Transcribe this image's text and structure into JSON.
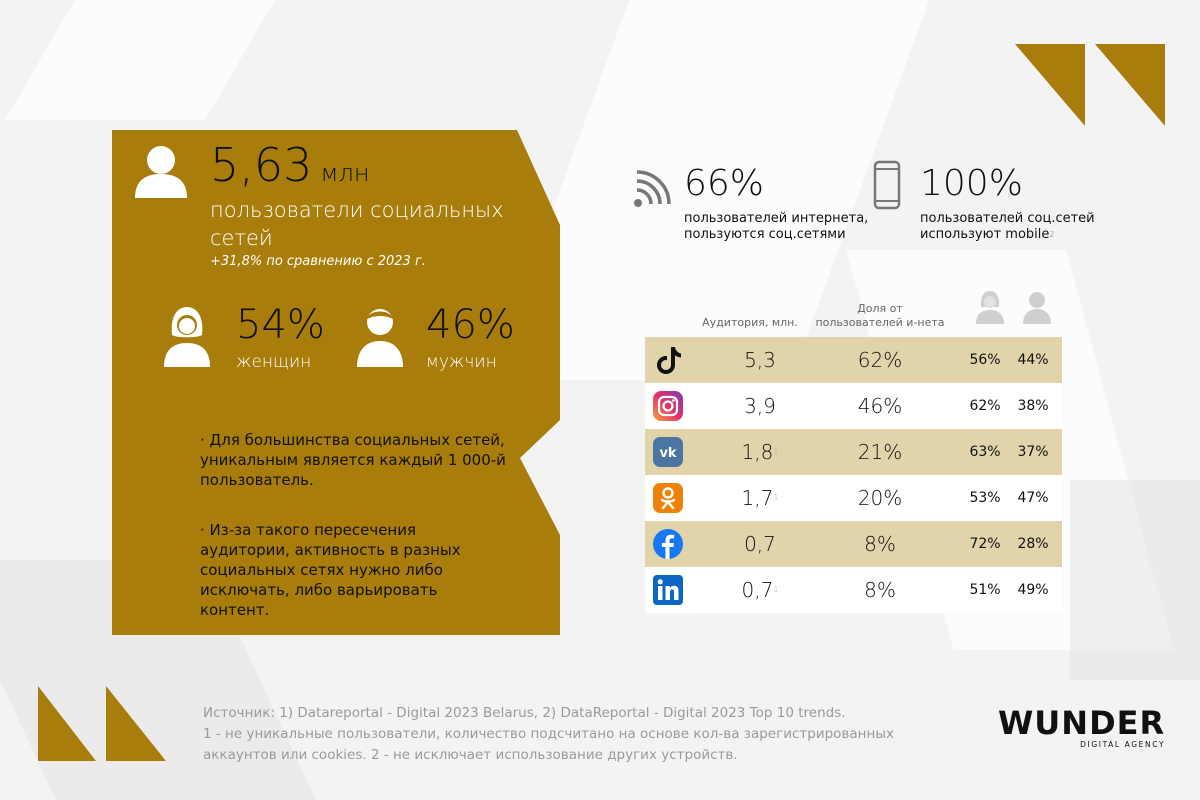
{
  "colors": {
    "gold": "#a97d0b",
    "gold_light": "#e1d3aa",
    "text_dark": "#111111",
    "footer_gray": "#9a9a9a"
  },
  "hero": {
    "icon": "person-icon",
    "value": "5,63",
    "unit": "млн",
    "label": "пользователи социальных сетей",
    "change": "+31,8% по сравнению с 2023 г."
  },
  "gender": {
    "women": {
      "icon": "woman-icon",
      "value": "54%",
      "label": "женщин"
    },
    "men": {
      "icon": "man-icon",
      "value": "46%",
      "label": "мужчин"
    }
  },
  "notes": [
    "· Для большинства социальных сетей, уникальным является каждый 1 000-й пользователь.",
    "· Из-за такого пересечения аудитории, активность в разных социальных сетях нужно либо исключать, либо варьировать контент."
  ],
  "stats": {
    "internet": {
      "icon": "wifi-icon",
      "value": "66%",
      "label_line1": "пользователей интернета,",
      "label_line2": "пользуются соц.сетями"
    },
    "mobile": {
      "icon": "smartphone-icon",
      "value": "100%",
      "label_line1": "пользователей соц.сетей",
      "label_line2": "используют mobile",
      "footnote": "2"
    }
  },
  "table": {
    "headers": {
      "audience": "Аудитория, млн.",
      "share_line1": "Доля от",
      "share_line2": "пользователей и-нета",
      "female_icon": "woman-icon",
      "male_icon": "man-icon"
    },
    "rows": [
      {
        "network": "tiktok-icon",
        "audience": "5,3",
        "footnote": "",
        "share": "62%",
        "female": "56%",
        "male": "44%"
      },
      {
        "network": "instagram-icon",
        "audience": "3,9",
        "footnote": "",
        "share": "46%",
        "female": "62%",
        "male": "38%"
      },
      {
        "network": "vk-icon",
        "audience": "1,8",
        "footnote": "1",
        "share": "21%",
        "female": "63%",
        "male": "37%"
      },
      {
        "network": "odnoklassniki-icon",
        "audience": "1,7",
        "footnote": "1",
        "share": "20%",
        "female": "53%",
        "male": "47%"
      },
      {
        "network": "facebook-icon",
        "audience": "0,7",
        "footnote": "",
        "share": "8%",
        "female": "72%",
        "male": "28%"
      },
      {
        "network": "linkedin-icon",
        "audience": "0,7",
        "footnote": "1",
        "share": "8%",
        "female": "51%",
        "male": "49%"
      }
    ]
  },
  "footer": {
    "line1": "Источник: 1) Datareportal - Digital 2023 Belarus, 2) DataReportal - Digital 2023 Top 10 trends.",
    "line2": "1 - не уникальные пользователи, количество подсчитано на основе кол-ва зарегистрированных",
    "line3": "аккаунтов или cookies. 2 - не исключает использование других устройств."
  },
  "logo": {
    "word": "WUNDER",
    "sub": "DIGITAL AGENCY"
  }
}
